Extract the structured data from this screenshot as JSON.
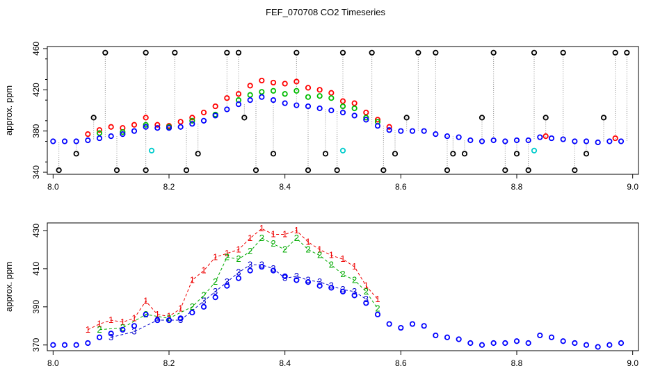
{
  "title": "FEF_070708  CO2 Timeseries",
  "chart_data": [
    {
      "type": "scatter",
      "title": "FEF_070708  CO2 Timeseries",
      "xlabel": "",
      "ylabel": "approx. ppm",
      "xlim": [
        7.99,
        9.01
      ],
      "ylim": [
        338,
        462
      ],
      "xticks": [
        "8.0",
        "8.2",
        "8.4",
        "8.6",
        "8.8",
        "9.0"
      ],
      "yticks": [
        "340",
        "380",
        "420",
        "460"
      ],
      "grid": false,
      "legend": "none",
      "series": [
        {
          "color": "#ff0000",
          "marker": "circle",
          "x": [
            8.06,
            8.08,
            8.1,
            8.12,
            8.14,
            8.16,
            8.18,
            8.2,
            8.22,
            8.24,
            8.26,
            8.28,
            8.3,
            8.32,
            8.34,
            8.36,
            8.38,
            8.4,
            8.42,
            8.44,
            8.46,
            8.48,
            8.5,
            8.52,
            8.54,
            8.56,
            8.58,
            8.85,
            8.97
          ],
          "y": [
            377,
            381,
            384,
            383,
            386,
            393,
            386,
            385,
            389,
            393,
            398,
            404,
            412,
            416,
            424,
            429,
            427,
            426,
            428,
            422,
            420,
            417,
            409,
            407,
            398,
            391,
            384,
            375,
            373
          ]
        },
        {
          "color": "#00bb00",
          "marker": "circle",
          "x": [
            8.08,
            8.12,
            8.16,
            8.2,
            8.24,
            8.28,
            8.32,
            8.34,
            8.36,
            8.38,
            8.4,
            8.42,
            8.44,
            8.46,
            8.48,
            8.5,
            8.52,
            8.54,
            8.56
          ],
          "y": [
            378,
            379,
            386,
            384,
            390,
            396,
            410,
            415,
            418,
            419,
            416,
            419,
            413,
            414,
            412,
            404,
            402,
            393,
            389
          ]
        },
        {
          "color": "#0000ff",
          "marker": "circle",
          "x": [
            8.0,
            8.02,
            8.04,
            8.06,
            8.08,
            8.1,
            8.12,
            8.14,
            8.16,
            8.18,
            8.2,
            8.22,
            8.24,
            8.26,
            8.28,
            8.3,
            8.32,
            8.34,
            8.36,
            8.38,
            8.4,
            8.42,
            8.44,
            8.46,
            8.48,
            8.5,
            8.52,
            8.54,
            8.56,
            8.58,
            8.6,
            8.62,
            8.64,
            8.66,
            8.68,
            8.7,
            8.72,
            8.74,
            8.76,
            8.78,
            8.8,
            8.82,
            8.84,
            8.86,
            8.88,
            8.9,
            8.92,
            8.94,
            8.96,
            8.98
          ],
          "y": [
            370,
            370,
            370,
            371,
            373,
            375,
            377,
            380,
            384,
            383,
            383,
            384,
            387,
            390,
            395,
            401,
            406,
            410,
            413,
            410,
            407,
            405,
            404,
            402,
            400,
            398,
            395,
            391,
            385,
            381,
            380,
            380,
            380,
            377,
            375,
            374,
            371,
            370,
            371,
            370,
            371,
            371,
            374,
            373,
            372,
            370,
            370,
            369,
            370,
            370
          ]
        },
        {
          "color": "#000000",
          "marker": "circle",
          "x": [
            8.01,
            8.04,
            8.07,
            8.09,
            8.11,
            8.16,
            8.16,
            8.21,
            8.23,
            8.25,
            8.3,
            8.32,
            8.33,
            8.35,
            8.38,
            8.42,
            8.44,
            8.47,
            8.49,
            8.5,
            8.55,
            8.57,
            8.59,
            8.61,
            8.63,
            8.66,
            8.68,
            8.69,
            8.71,
            8.74,
            8.76,
            8.78,
            8.8,
            8.82,
            8.83,
            8.85,
            8.88,
            8.9,
            8.92,
            8.95,
            8.97,
            8.99
          ],
          "y": [
            342,
            358,
            393,
            456,
            342,
            342,
            456,
            456,
            342,
            358,
            456,
            456,
            393,
            342,
            358,
            456,
            342,
            358,
            342,
            456,
            456,
            342,
            358,
            393,
            456,
            456,
            342,
            358,
            358,
            393,
            456,
            342,
            358,
            342,
            456,
            393,
            456,
            342,
            358,
            393,
            456,
            456
          ]
        },
        {
          "color": "#00cccc",
          "marker": "circle",
          "x": [
            8.17,
            8.5,
            8.83
          ],
          "y": [
            361,
            361,
            361
          ]
        }
      ]
    },
    {
      "type": "line",
      "title": "",
      "xlabel": "",
      "ylabel": "approx. ppm",
      "xlim": [
        7.99,
        9.01
      ],
      "ylim": [
        367,
        434
      ],
      "xticks": [
        "8.0",
        "8.2",
        "8.4",
        "8.6",
        "8.8",
        "9.0"
      ],
      "yticks": [
        "370",
        "390",
        "410",
        "430"
      ],
      "grid": false,
      "legend": "none",
      "series": [
        {
          "label_char": "1",
          "color": "#ee0000",
          "x": [
            8.06,
            8.08,
            8.1,
            8.12,
            8.14,
            8.16,
            8.18,
            8.2,
            8.22,
            8.24,
            8.26,
            8.28,
            8.3,
            8.32,
            8.34,
            8.36,
            8.38,
            8.4,
            8.42,
            8.44,
            8.46,
            8.48,
            8.5,
            8.52,
            8.54,
            8.56
          ],
          "y": [
            378,
            381,
            383,
            382,
            384,
            393,
            386,
            385,
            389,
            404,
            409,
            416,
            418,
            420,
            426,
            431,
            428,
            428,
            430,
            424,
            420,
            417,
            415,
            411,
            401,
            394
          ]
        },
        {
          "label_char": "2",
          "color": "#00aa00",
          "x": [
            8.08,
            8.12,
            8.16,
            8.2,
            8.24,
            8.26,
            8.28,
            8.3,
            8.32,
            8.34,
            8.36,
            8.38,
            8.4,
            8.42,
            8.44,
            8.46,
            8.48,
            8.5,
            8.52,
            8.54,
            8.56
          ],
          "y": [
            378,
            379,
            386,
            384,
            390,
            396,
            403,
            416,
            415,
            419,
            426,
            423,
            420,
            426,
            420,
            417,
            412,
            407,
            404,
            398,
            389
          ]
        },
        {
          "label_char": "3",
          "color": "#0000cc",
          "x": [
            8.1,
            8.14,
            8.18,
            8.22,
            8.26,
            8.28,
            8.3,
            8.32,
            8.34,
            8.36,
            8.38,
            8.4,
            8.42,
            8.44,
            8.46,
            8.48,
            8.5,
            8.52,
            8.54
          ],
          "y": [
            374,
            377,
            383,
            383,
            393,
            398,
            403,
            408,
            412,
            412,
            410,
            405,
            406,
            404,
            403,
            401,
            399,
            398,
            394
          ]
        },
        {
          "label_char": "",
          "color": "#0000ff",
          "marker": "circle",
          "x": [
            8.0,
            8.02,
            8.04,
            8.06,
            8.08,
            8.1,
            8.12,
            8.14,
            8.16,
            8.18,
            8.2,
            8.22,
            8.24,
            8.26,
            8.28,
            8.3,
            8.32,
            8.34,
            8.36,
            8.38,
            8.4,
            8.42,
            8.44,
            8.46,
            8.48,
            8.5,
            8.52,
            8.54,
            8.56,
            8.58,
            8.6,
            8.62,
            8.64,
            8.66,
            8.68,
            8.7,
            8.72,
            8.74,
            8.76,
            8.78,
            8.8,
            8.82,
            8.84,
            8.86,
            8.88,
            8.9,
            8.92,
            8.94,
            8.96,
            8.98
          ],
          "y": [
            370,
            370,
            370,
            371,
            374,
            376,
            378,
            380,
            386,
            383,
            383,
            384,
            387,
            390,
            395,
            401,
            405,
            409,
            411,
            409,
            406,
            404,
            403,
            401,
            400,
            398,
            396,
            392,
            386,
            381,
            379,
            381,
            380,
            375,
            374,
            373,
            371,
            370,
            371,
            371,
            372,
            371,
            375,
            374,
            372,
            371,
            370,
            369,
            370,
            371
          ]
        }
      ]
    }
  ]
}
